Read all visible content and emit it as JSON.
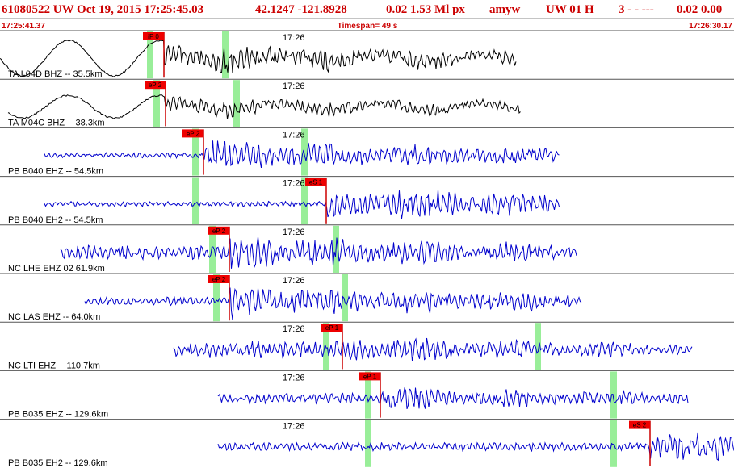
{
  "header": {
    "event": "61080522 UW Oct 19, 2015 17:25:45.03",
    "location": "42.1247 -121.8928",
    "magnitude": "0.02 1.53 Ml px",
    "user": "amyw",
    "net": "UW 01 H",
    "flags": "3  -  - ---",
    "quality": "0.02 0.00"
  },
  "timebar": {
    "start": "17:25:41.37",
    "timespan": "Timespan=  49 s",
    "end": "17:26:30.17"
  },
  "traces": [
    {
      "label": "TA L04D BHZ -- 35.5km",
      "time": "17:26",
      "pick": "iP 0",
      "color": "#000000"
    },
    {
      "label": "TA M04C BHZ -- 38.3km",
      "time": "17:26",
      "pick": "eP 2",
      "color": "#000000"
    },
    {
      "label": "PB B040 EHZ -- 54.5km",
      "time": "17:26",
      "pick": "eP 2",
      "color": "#0000cc"
    },
    {
      "label": "PB B040 EH2 -- 54.5km",
      "time": "17:26",
      "pick": "eS 1",
      "color": "#0000cc"
    },
    {
      "label": "NC LHE EHZ 02 61.9km",
      "time": "17:26",
      "pick": "eP 2",
      "color": "#0000cc"
    },
    {
      "label": "NC LAS EHZ -- 64.0km",
      "time": "17:26",
      "pick": "eP 2",
      "color": "#0000cc"
    },
    {
      "label": "NC LTI EHZ -- 110.7km",
      "time": "17:26",
      "pick": "eP 1",
      "color": "#0000cc"
    },
    {
      "label": "PB B035 EHZ -- 129.6km",
      "time": "17:26",
      "pick": "eP 1",
      "color": "#0000cc"
    },
    {
      "label": "PB B035 EH2 -- 129.6km",
      "time": "17:26",
      "pick": "eS 2",
      "color": "#0000cc"
    }
  ]
}
